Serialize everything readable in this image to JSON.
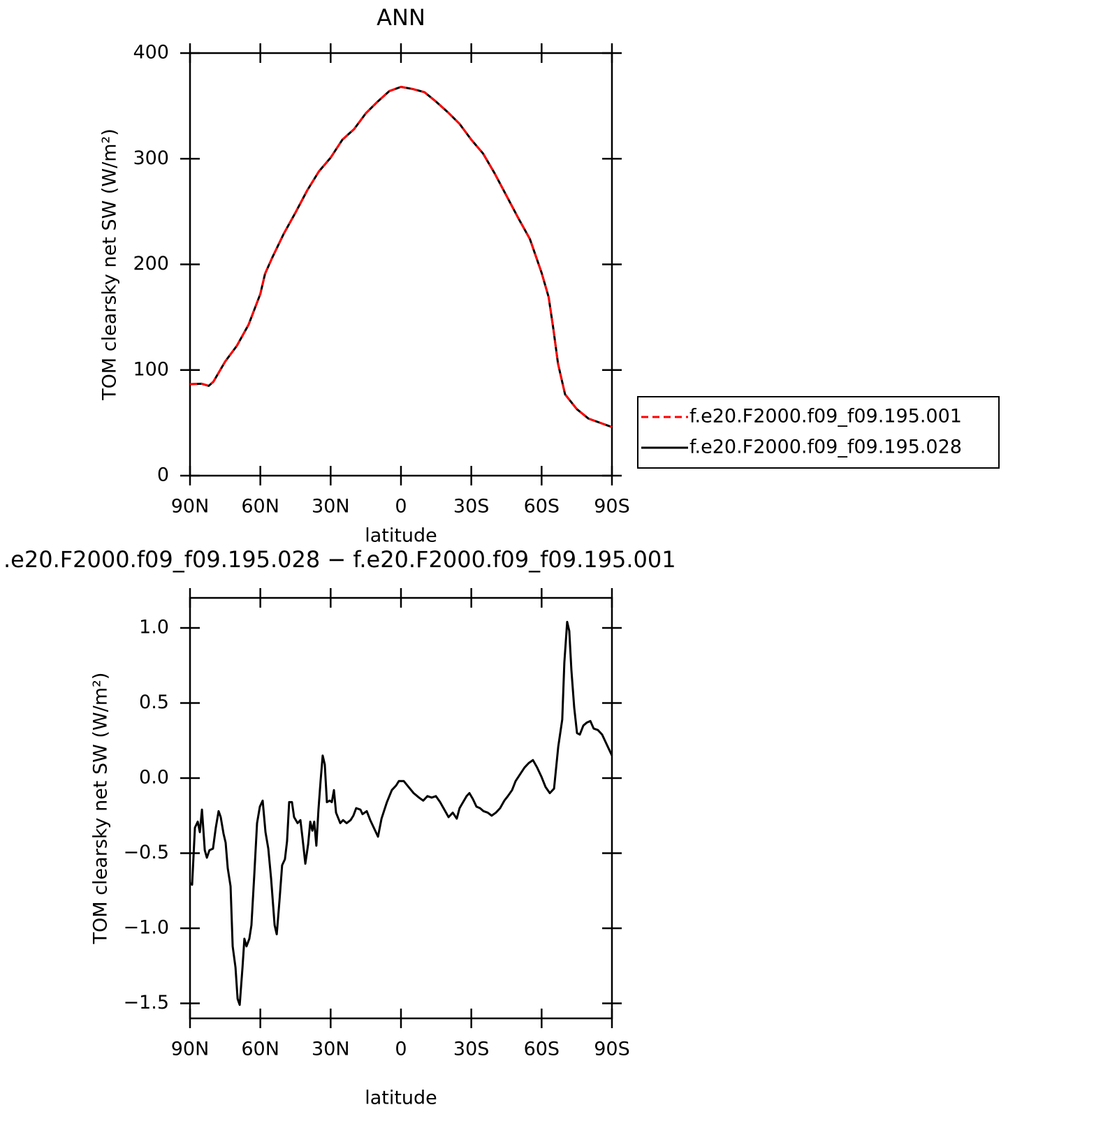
{
  "chart_data": [
    {
      "type": "line",
      "title": "ANN",
      "ylabel": "TOM clearsky net SW (W/m²)",
      "xlabel": "latitude",
      "x": [
        90,
        85,
        82,
        80,
        75,
        70,
        65,
        60,
        58,
        55,
        50,
        45,
        40,
        35,
        30,
        25,
        20,
        15,
        10,
        5,
        0,
        -5,
        -10,
        -15,
        -20,
        -25,
        -30,
        -35,
        -40,
        -45,
        -50,
        -55,
        -60,
        -63,
        -65,
        -67,
        -70,
        -75,
        -80,
        -85,
        -90
      ],
      "series": [
        {
          "name": "f.e20.F2000.f09_f09.195.001",
          "color": "#ff0000",
          "linestyle": "dashed",
          "values": [
            86.6,
            87,
            85,
            89,
            108,
            123,
            143,
            172,
            191,
            206,
            229,
            249,
            270,
            288,
            301,
            318,
            328,
            343,
            354,
            364,
            368,
            366,
            363,
            354,
            344,
            333,
            318,
            305,
            286,
            265,
            244,
            224,
            192,
            169,
            139,
            106,
            77,
            63,
            54,
            50,
            46
          ]
        },
        {
          "name": "f.e20.F2000.f09_f09.195.028",
          "color": "#000000",
          "linestyle": "solid",
          "values": [
            86.6,
            87,
            85,
            89,
            108,
            123,
            143,
            172,
            191,
            206,
            229,
            249,
            270,
            288,
            301,
            318,
            328,
            343,
            354,
            364,
            368,
            366,
            363,
            354,
            344,
            333,
            318,
            305,
            286,
            265,
            244,
            224,
            192,
            169,
            139,
            106,
            77,
            63,
            54,
            50,
            46
          ]
        }
      ],
      "xlim": [
        90,
        -90
      ],
      "xticks": [
        {
          "value": 90,
          "label": "90N"
        },
        {
          "value": 60,
          "label": "60N"
        },
        {
          "value": 30,
          "label": "30N"
        },
        0,
        {
          "value": -30,
          "label": "30S"
        },
        {
          "value": -60,
          "label": "60S"
        },
        {
          "value": -90,
          "label": "90S"
        }
      ],
      "ylim": [
        0,
        400
      ],
      "yticks": [
        0,
        100,
        200,
        300,
        400
      ],
      "legend": "right"
    },
    {
      "type": "line",
      "title": ".e20.F2000.f09_f09.195.028 − f.e20.F2000.f09_f09.195.001",
      "ylabel": "TOM clearsky net SW (W/m²)",
      "xlabel": "latitude",
      "x": [
        90,
        89.1,
        87.9,
        86.7,
        85.8,
        84.9,
        83.7,
        82.8,
        81.7,
        80.2,
        79.0,
        77.8,
        76.9,
        75.7,
        74.8,
        73.9,
        72.7,
        71.8,
        70.6,
        69.7,
        68.8,
        67.6,
        66.8,
        65.9,
        64.7,
        63.8,
        62.6,
        61.4,
        60.2,
        59.0,
        57.8,
        56.6,
        55.4,
        53.9,
        53.0,
        51.8,
        50.7,
        49.5,
        48.6,
        47.7,
        46.5,
        45.6,
        44.1,
        42.9,
        42.0,
        40.8,
        39.6,
        38.7,
        37.8,
        37.0,
        36.1,
        35.2,
        34.3,
        33.4,
        32.5,
        31.6,
        30.4,
        29.5,
        28.6,
        27.7,
        25.9,
        24.7,
        23.2,
        21.5,
        20.3,
        19.1,
        17.3,
        16.4,
        14.6,
        13.1,
        11.0,
        9.8,
        8.3,
        6.0,
        3.9,
        2.1,
        0.9,
        -1.2,
        -3.3,
        -5.4,
        -7.7,
        -9.5,
        -11.3,
        -13.1,
        -14.9,
        -16.7,
        -18.5,
        -20.3,
        -22.1,
        -23.8,
        -25.0,
        -26.5,
        -28.0,
        -29.2,
        -30.7,
        -32.2,
        -33.7,
        -35.2,
        -37.0,
        -38.7,
        -40.5,
        -42.3,
        -44.1,
        -45.6,
        -47.4,
        -48.9,
        -51.0,
        -52.7,
        -54.5,
        -56.3,
        -58.1,
        -59.9,
        -61.7,
        -63.5,
        -65.3,
        -67.1,
        -68.8,
        -69.7,
        -70.9,
        -71.8,
        -72.7,
        -73.9,
        -75.1,
        -76.3,
        -77.8,
        -79.3,
        -80.8,
        -82.2,
        -84.0,
        -85.8,
        -87.0,
        -88.8,
        -90
      ],
      "values": [
        -0.7,
        -0.71,
        -0.33,
        -0.29,
        -0.36,
        -0.21,
        -0.48,
        -0.53,
        -0.48,
        -0.47,
        -0.33,
        -0.22,
        -0.26,
        -0.37,
        -0.43,
        -0.6,
        -0.72,
        -1.12,
        -1.26,
        -1.47,
        -1.51,
        -1.26,
        -1.07,
        -1.12,
        -1.07,
        -0.98,
        -0.65,
        -0.3,
        -0.19,
        -0.15,
        -0.36,
        -0.47,
        -0.67,
        -0.98,
        -1.04,
        -0.81,
        -0.58,
        -0.54,
        -0.42,
        -0.16,
        -0.16,
        -0.26,
        -0.3,
        -0.28,
        -0.4,
        -0.57,
        -0.44,
        -0.29,
        -0.35,
        -0.29,
        -0.45,
        -0.21,
        -0.02,
        0.15,
        0.09,
        -0.16,
        -0.15,
        -0.16,
        -0.08,
        -0.23,
        -0.3,
        -0.28,
        -0.3,
        -0.28,
        -0.25,
        -0.2,
        -0.21,
        -0.24,
        -0.22,
        -0.28,
        -0.35,
        -0.39,
        -0.27,
        -0.16,
        -0.08,
        -0.05,
        -0.02,
        -0.02,
        -0.06,
        -0.1,
        -0.13,
        -0.15,
        -0.12,
        -0.13,
        -0.12,
        -0.16,
        -0.21,
        -0.26,
        -0.23,
        -0.27,
        -0.2,
        -0.16,
        -0.12,
        -0.1,
        -0.14,
        -0.19,
        -0.2,
        -0.22,
        -0.23,
        -0.25,
        -0.23,
        -0.2,
        -0.15,
        -0.12,
        -0.08,
        -0.02,
        0.03,
        0.07,
        0.1,
        0.12,
        0.07,
        0.01,
        -0.06,
        -0.1,
        -0.07,
        0.21,
        0.39,
        0.77,
        1.04,
        0.98,
        0.72,
        0.47,
        0.3,
        0.29,
        0.35,
        0.37,
        0.38,
        0.33,
        0.32,
        0.29,
        0.25,
        0.19,
        0.15
      ],
      "color": "#000000",
      "linestyle": "solid",
      "xlim": [
        90,
        -90
      ],
      "xticks": [
        {
          "value": 90,
          "label": "90N"
        },
        {
          "value": 60,
          "label": "60N"
        },
        {
          "value": 30,
          "label": "30N"
        },
        0,
        {
          "value": -30,
          "label": "30S"
        },
        {
          "value": -60,
          "label": "60S"
        },
        {
          "value": -90,
          "label": "90S"
        }
      ],
      "ylim": [
        -1.6,
        1.2
      ],
      "yticks": [
        {
          "value": -1.5,
          "label": "−1.5"
        },
        {
          "value": -1,
          "label": "−1.0"
        },
        {
          "value": -0.5,
          "label": "−0.5"
        },
        {
          "value": 0,
          "label": "0.0"
        },
        0.5,
        {
          "value": 1,
          "label": "1.0"
        }
      ]
    }
  ]
}
